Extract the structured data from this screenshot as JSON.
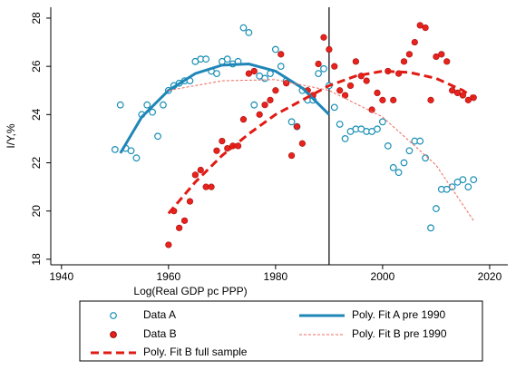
{
  "chart_data": {
    "type": "scatter",
    "x_label": "Log(Real GDP pc PPP)",
    "y_label": "I/Y,%",
    "xlim": [
      1938,
      2023.4
    ],
    "ylim": [
      17.77,
      28.45
    ],
    "xticks": [
      1940,
      1960,
      1980,
      2000,
      2020
    ],
    "yticks": [
      18,
      20,
      22,
      24,
      26,
      28
    ],
    "vline": 1990,
    "series": [
      {
        "name": "Data A",
        "color": "#1a8fb5",
        "mark": "hollow-circle",
        "x": [
          1950,
          1951,
          1952,
          1953,
          1954,
          1955,
          1956,
          1957,
          1958,
          1959,
          1960,
          1961,
          1962,
          1963,
          1964,
          1965,
          1966,
          1967,
          1968,
          1969,
          1970,
          1971,
          1972,
          1973,
          1974,
          1975,
          1976,
          1977,
          1978,
          1979,
          1980,
          1981,
          1982,
          1983,
          1984,
          1985,
          1986,
          1987,
          1988,
          1989,
          1990,
          1991,
          1992,
          1993,
          1994,
          1995,
          1996,
          1997,
          1998,
          1999,
          2000,
          2001,
          2002,
          2003,
          2004,
          2005,
          2006,
          2007,
          2008,
          2009,
          2010,
          2011,
          2012,
          2013,
          2014,
          2015,
          2016,
          2017
        ],
        "values": [
          22.55,
          24.4,
          22.6,
          22.5,
          22.2,
          24.0,
          24.4,
          24.1,
          23.1,
          24.4,
          25.0,
          25.2,
          25.3,
          25.4,
          25.4,
          26.2,
          26.3,
          26.3,
          25.8,
          25.7,
          26.2,
          26.3,
          26.1,
          26.2,
          27.6,
          27.4,
          24.4,
          25.6,
          25.5,
          25.7,
          26.7,
          26.0,
          25.4,
          23.7,
          23.5,
          25.0,
          24.6,
          24.6,
          25.7,
          25.9,
          25.2,
          24.3,
          23.6,
          23.0,
          23.3,
          23.4,
          23.4,
          23.3,
          23.3,
          23.4,
          23.7,
          22.7,
          21.8,
          21.6,
          22.0,
          22.5,
          22.9,
          22.9,
          22.2,
          19.3,
          20.1,
          20.9,
          20.9,
          21.0,
          21.2,
          21.3,
          21.0,
          21.3
        ]
      },
      {
        "name": "Data B",
        "color": "#e8221c",
        "mark": "filled-circle",
        "x": [
          1960,
          1961,
          1962,
          1963,
          1964,
          1965,
          1966,
          1967,
          1968,
          1969,
          1970,
          1971,
          1972,
          1973,
          1974,
          1975,
          1976,
          1977,
          1978,
          1979,
          1980,
          1981,
          1982,
          1983,
          1984,
          1985,
          1986,
          1987,
          1988,
          1989,
          1990,
          1991,
          1992,
          1993,
          1994,
          1995,
          1996,
          1997,
          1998,
          1999,
          2000,
          2001,
          2002,
          2003,
          2004,
          2005,
          2006,
          2007,
          2008,
          2009,
          2010,
          2011,
          2012,
          2013,
          2014,
          2015,
          2016,
          2017
        ],
        "values": [
          18.6,
          20.0,
          19.3,
          19.6,
          20.4,
          21.5,
          21.7,
          21.0,
          21.0,
          22.5,
          22.9,
          22.6,
          22.7,
          22.7,
          23.8,
          25.7,
          25.8,
          24.0,
          24.4,
          24.6,
          25.0,
          26.5,
          25.3,
          22.3,
          23.5,
          22.8,
          25.0,
          24.8,
          26.1,
          27.2,
          26.7,
          26.0,
          25.0,
          24.8,
          25.2,
          26.2,
          25.6,
          25.4,
          24.2,
          24.9,
          24.6,
          25.8,
          24.6,
          25.7,
          26.2,
          26.5,
          27.0,
          27.7,
          27.6,
          24.6,
          26.4,
          26.5,
          26.2,
          25.0,
          24.9,
          24.8,
          24.6,
          24.7
        ]
      },
      {
        "name": "Poly. Fit A pre 1990",
        "color": "#1f86b8",
        "mark": "line",
        "width": 3,
        "dash": "none",
        "x": [
          1951,
          1955,
          1960,
          1965,
          1970,
          1975,
          1980,
          1985,
          1990
        ],
        "values": [
          22.4,
          23.9,
          25.0,
          25.7,
          26.05,
          26.1,
          25.8,
          25.1,
          24.0
        ]
      },
      {
        "name": "Poly. Fit B pre 1990",
        "color": "#f06a5e",
        "mark": "line",
        "width": 1,
        "dash": "3 2",
        "x": [
          1960,
          1970,
          1980,
          1990,
          2000,
          2010,
          2017
        ],
        "values": [
          25.0,
          25.4,
          25.45,
          25.0,
          23.9,
          21.9,
          19.6
        ]
      },
      {
        "name": "Poly. Fit B full sample",
        "color": "#e01b12",
        "mark": "line",
        "width": 3,
        "dash": "9 5",
        "x": [
          1960,
          1965,
          1970,
          1975,
          1980,
          1985,
          1990,
          1995,
          2000,
          2005,
          2010,
          2015,
          2017
        ],
        "values": [
          19.9,
          21.2,
          22.3,
          23.2,
          24.0,
          24.6,
          25.2,
          25.6,
          25.8,
          25.75,
          25.5,
          25.0,
          24.7
        ]
      }
    ]
  }
}
